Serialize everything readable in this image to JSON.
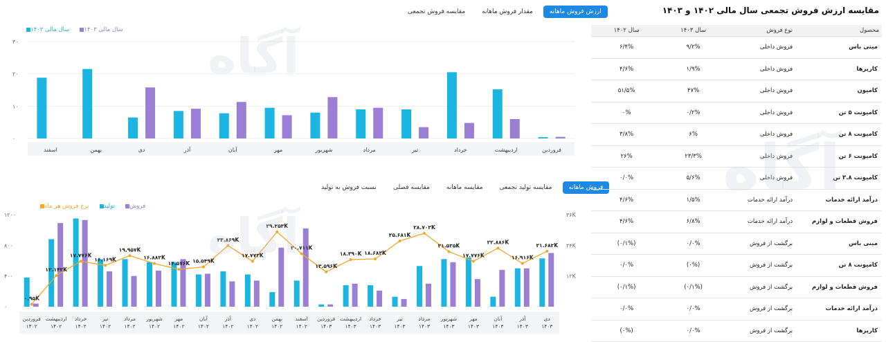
{
  "right": {
    "title": "مقایسه ارزش فروش تجمعی سال مالی ۱۴۰۲ و ۱۴۰۳",
    "columns": [
      "محصول",
      "نوع فروش",
      "سال ۱۴۰۳",
      "سال ۱۴۰۲"
    ],
    "rows": [
      [
        "مینی باس",
        "فروش داخلی",
        "۹/۲%",
        "۶/۴%"
      ],
      [
        "کارپرها",
        "فروش داخلی",
        "۱/۹%",
        "۴/۶%"
      ],
      [
        "کامیون",
        "فروش داخلی",
        "۴۷%",
        "۵۱/۵%"
      ],
      [
        "کامیونت ۵ تن",
        "فروش داخلی",
        "۰/۲%",
        "۰%"
      ],
      [
        "کامیونت ۸ تن",
        "فروش داخلی",
        "۶%",
        "۳/۸%"
      ],
      [
        "کامیونت ۶ تن",
        "فروش داخلی",
        "۲۳/۳%",
        "۲۶%"
      ],
      [
        "کامیونت ۳.۸ تن",
        "فروش داخلی",
        "۵/۶%",
        "۰/۰%"
      ],
      [
        "درآمد ارائه خدمات",
        "درآمد ارائه خدمات",
        "۱/۵%",
        "۴/۶%"
      ],
      [
        "فروش قطعات و لوازم",
        "درآمد ارائه خدمات",
        "۶/۸%",
        "۴/۶%"
      ],
      [
        "مینی باس",
        "برگشت از فروش",
        "۰/۰%",
        "(۰/۱%)"
      ],
      [
        "کامیونت ۸ تن",
        "برگشت از فروش",
        "(۰%)",
        "۰/۰%"
      ],
      [
        "فروش قطعات و لوازم",
        "برگشت از فروش",
        "(۰/۱%)",
        "(۰/۱%)"
      ],
      [
        "درآمد ارائه خدمات",
        "برگشت از فروش",
        "۰/۰%",
        "۰/۰%"
      ],
      [
        "کارپرها",
        "برگشت از فروش",
        "۰/۰%",
        "(۰%)"
      ]
    ]
  },
  "top": {
    "tabs": [
      "ارزش فروش ماهانه",
      "مقدار فروش ماهانه",
      "مقایسه فروش تجمعی"
    ],
    "legend": [
      "سال مالی ۱۴۰۳",
      "سال مالی ۱۴۰۲"
    ]
  },
  "bottom": {
    "tabs": [
      "فروش ماهانه",
      "مقایسه تولید تجمعی",
      "مقایسه ماهانه",
      "مقایسه فصلی",
      "نسبت فروش به تولید"
    ],
    "legend": [
      "فروش",
      "تولید",
      "نرخ فروش هر ماه"
    ]
  },
  "watermark": "آگاه",
  "colors": {
    "y1403": "#9b7fd4",
    "y1402": "#1ab5e0",
    "accent": "#1e88e5",
    "rate": "#f5a623"
  },
  "chart_data": [
    {
      "type": "bar",
      "categories": [
        "فروردین",
        "اردیبهشت",
        "خرداد",
        "تیر",
        "مرداد",
        "شهریور",
        "مهر",
        "آبان",
        "آذر",
        "دی",
        "بهمن",
        "اسفند"
      ],
      "series": [
        {
          "name": "سال مالی ۱۴۰۳",
          "values": [
            0.5,
            6,
            4.8,
            3.5,
            9.5,
            12.8,
            7.2,
            11.3,
            9.2,
            15.8,
            null,
            null
          ]
        },
        {
          "name": "سال مالی ۱۴۰۲",
          "values": [
            0.4,
            15.2,
            20.5,
            9,
            9,
            8,
            9.5,
            7.8,
            8.5,
            6.5,
            21.5,
            18.8
          ]
        }
      ],
      "yticks": [
        "۰",
        "۱۰",
        "۲۰",
        "۳۰"
      ],
      "ylim": [
        0,
        30
      ]
    },
    {
      "type": "bar",
      "categories": [
        "فروردین ۱۴۰۲",
        "اردیبهشت ۱۴۰۲",
        "خرداد ۱۴۰۲",
        "تیر ۱۴۰۲",
        "مرداد ۱۴۰۲",
        "شهریور ۱۴۰۲",
        "مهر ۱۴۰۲",
        "آبان ۱۴۰۲",
        "آذر ۱۴۰۲",
        "دی ۱۴۰۲",
        "بهمن ۱۴۰۲",
        "اسفند ۱۴۰۲",
        "فروردین ۱۴۰۳",
        "اردیبهشت ۱۴۰۳",
        "خرداد ۱۴۰۳",
        "تیر ۱۴۰۳",
        "مرداد ۱۴۰۳",
        "شهریور ۱۴۰۳",
        "مهر ۱۴۰۳",
        "آبان ۱۴۰۳",
        "آذر ۱۴۰۳",
        "دی ۱۴۰۳"
      ],
      "series": [
        {
          "name": "تولید",
          "values": [
            380,
            880,
            1150,
            620,
            620,
            580,
            580,
            420,
            460,
            420,
            190,
            340,
            30,
            280,
            280,
            130,
            530,
            620,
            640,
            130,
            500,
            630
          ]
        },
        {
          "name": "فروش",
          "values": [
            40,
            1090,
            1130,
            460,
            400,
            470,
            620,
            430,
            330,
            340,
            770,
            1020,
            30,
            300,
            210,
            100,
            300,
            580,
            360,
            480,
            500,
            700
          ]
        }
      ],
      "line": {
        "name": "نرخ فروش هر ماه",
        "values": [
          0.95,
          12.142,
          17.776,
          16.169,
          19.957,
          16.882,
          14.576,
          15.549,
          23.869,
          17.773,
          29.253,
          20.711,
          13.596,
          18.39,
          18.683,
          25.681,
          28.702,
          21.535,
          17.776,
          22.886,
          16.916,
          21.682
        ],
        "labels": [
          "۰.۹۵K",
          "۱۲.۱۴۲K",
          "۱۷.۷۷۶K",
          "۱۶.۱۶۹K",
          "۱۹.۹۵۷K",
          "۱۶.۸۸۲K",
          "۱۴.۵۷۶K",
          "۱۵.۵۴۹K",
          "۲۳.۸۶۹K",
          "۱۷.۷۷۳K",
          "۲۹.۲۵۳K",
          "۲۰.۷۱۱K",
          "۱۳.۵۹۶K",
          "۱۸.۳۹۰K",
          "۱۸.۶۸۳K",
          "۲۵.۶۸۱K",
          "۲۸.۷۰۲K",
          "۲۱.۵۳۵K",
          "۱۷.۷۷۶K",
          "۲۲.۸۸۶K",
          "۱۶.۹۱۶K",
          "۲۱.۶۸۲K"
        ]
      },
      "yticks_left": [
        "۰",
        "۴۰۰",
        "۸۰۰",
        "۱۲۰۰"
      ],
      "yticks_right": [
        "۱۲K",
        "۲۴K",
        "۳۶K"
      ],
      "ylim": [
        0,
        1200
      ],
      "y2lim": [
        0,
        36
      ]
    }
  ]
}
